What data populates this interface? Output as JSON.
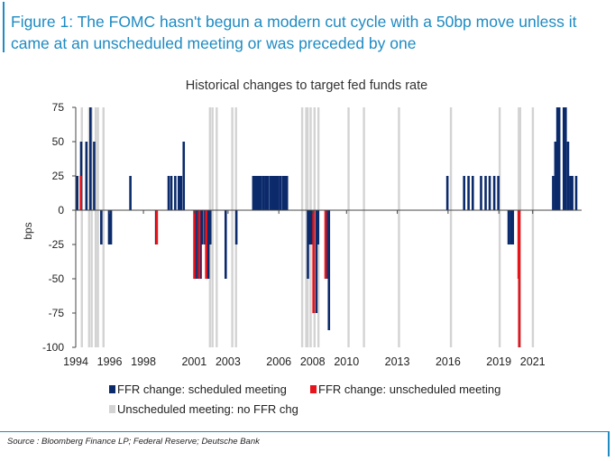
{
  "figure": {
    "title": "Figure 1: The FOMC hasn't begun a modern cut cycle with a 50bp move unless it came at an unscheduled meeting or was preceded by one",
    "source": "Source : Bloomberg Finance LP; Federal Reserve; Deutsche Bank"
  },
  "chart_data": {
    "type": "bar",
    "title": "Historical changes to target fed funds rate",
    "ylabel": "bps",
    "xlabel": "",
    "ylim": [
      -100,
      75
    ],
    "xlim": [
      1994.0,
      2023.2
    ],
    "yticks": [
      75,
      50,
      25,
      0,
      -25,
      -50,
      -75,
      -100
    ],
    "xticks": [
      "1994",
      "1996",
      "1998",
      "2001",
      "2003",
      "2006",
      "2008",
      "2010",
      "2013",
      "2016",
      "2019",
      "2021"
    ],
    "legend_placement": "bottom",
    "colors": {
      "scheduled": "#0b2a6b",
      "unscheduled": "#e8141b",
      "unscheduled_no_change": "#d3d3d3"
    },
    "series": [
      {
        "name": "FFR change: scheduled meeting",
        "points": [
          {
            "x": 1994.09,
            "y": 25
          },
          {
            "x": 1994.32,
            "y": 50
          },
          {
            "x": 1994.63,
            "y": 50
          },
          {
            "x": 1994.87,
            "y": 75
          },
          {
            "x": 1995.09,
            "y": 50
          },
          {
            "x": 1995.51,
            "y": -25
          },
          {
            "x": 1995.97,
            "y": -25
          },
          {
            "x": 1996.08,
            "y": -25
          },
          {
            "x": 1997.23,
            "y": 25
          },
          {
            "x": 1998.75,
            "y": -25
          },
          {
            "x": 1999.49,
            "y": 25
          },
          {
            "x": 1999.65,
            "y": 25
          },
          {
            "x": 1999.88,
            "y": 25
          },
          {
            "x": 2000.09,
            "y": 25
          },
          {
            "x": 2000.22,
            "y": 25
          },
          {
            "x": 2000.38,
            "y": 50
          },
          {
            "x": 2001.08,
            "y": -50
          },
          {
            "x": 2001.22,
            "y": -50
          },
          {
            "x": 2001.38,
            "y": -50
          },
          {
            "x": 2001.48,
            "y": -25
          },
          {
            "x": 2001.64,
            "y": -25
          },
          {
            "x": 2001.84,
            "y": -50
          },
          {
            "x": 2001.95,
            "y": -25
          },
          {
            "x": 2002.86,
            "y": -50
          },
          {
            "x": 2003.49,
            "y": -25
          },
          {
            "x": 2004.49,
            "y": 25
          },
          {
            "x": 2004.61,
            "y": 25
          },
          {
            "x": 2004.72,
            "y": 25
          },
          {
            "x": 2004.81,
            "y": 25
          },
          {
            "x": 2004.87,
            "y": 25
          },
          {
            "x": 2004.95,
            "y": 25
          },
          {
            "x": 2005.09,
            "y": 25
          },
          {
            "x": 2005.22,
            "y": 25
          },
          {
            "x": 2005.34,
            "y": 25
          },
          {
            "x": 2005.49,
            "y": 25
          },
          {
            "x": 2005.61,
            "y": 25
          },
          {
            "x": 2005.72,
            "y": 25
          },
          {
            "x": 2005.84,
            "y": 25
          },
          {
            "x": 2005.95,
            "y": 25
          },
          {
            "x": 2006.09,
            "y": 25
          },
          {
            "x": 2006.24,
            "y": 25
          },
          {
            "x": 2006.36,
            "y": 25
          },
          {
            "x": 2006.48,
            "y": 25
          },
          {
            "x": 2007.72,
            "y": -50
          },
          {
            "x": 2007.83,
            "y": -25
          },
          {
            "x": 2007.95,
            "y": -25
          },
          {
            "x": 2008.22,
            "y": -75
          },
          {
            "x": 2008.32,
            "y": -25
          },
          {
            "x": 2008.82,
            "y": -50
          },
          {
            "x": 2008.96,
            "y": -87.5
          },
          {
            "x": 2015.96,
            "y": 25
          },
          {
            "x": 2016.95,
            "y": 25
          },
          {
            "x": 2017.21,
            "y": 25
          },
          {
            "x": 2017.46,
            "y": 25
          },
          {
            "x": 2017.95,
            "y": 25
          },
          {
            "x": 2018.22,
            "y": 25
          },
          {
            "x": 2018.46,
            "y": 25
          },
          {
            "x": 2018.73,
            "y": 25
          },
          {
            "x": 2018.97,
            "y": 25
          },
          {
            "x": 2019.58,
            "y": -25
          },
          {
            "x": 2019.71,
            "y": -25
          },
          {
            "x": 2019.83,
            "y": -25
          },
          {
            "x": 2022.21,
            "y": 25
          },
          {
            "x": 2022.34,
            "y": 50
          },
          {
            "x": 2022.46,
            "y": 75
          },
          {
            "x": 2022.57,
            "y": 75
          },
          {
            "x": 2022.84,
            "y": 75
          },
          {
            "x": 2022.95,
            "y": 75
          },
          {
            "x": 2023.09,
            "y": 50
          },
          {
            "x": 2023.22,
            "y": 25
          },
          {
            "x": 2023.34,
            "y": 25
          },
          {
            "x": 2023.57,
            "y": 25
          }
        ]
      },
      {
        "name": "FFR change: unscheduled meeting",
        "points": [
          {
            "x": 1994.3,
            "y": 25
          },
          {
            "x": 1998.79,
            "y": -25
          },
          {
            "x": 2001.01,
            "y": -50
          },
          {
            "x": 2001.3,
            "y": -50
          },
          {
            "x": 2001.71,
            "y": -50
          },
          {
            "x": 2008.05,
            "y": -75
          },
          {
            "x": 2008.76,
            "y": -50
          },
          {
            "x": 2020.17,
            "y": -50
          },
          {
            "x": 2020.21,
            "y": -100
          }
        ]
      },
      {
        "name": "Unscheduled meeting: no FFR chg",
        "points": [
          {
            "x": 1994.36
          },
          {
            "x": 1994.79
          },
          {
            "x": 1994.94
          },
          {
            "x": 1995.18
          },
          {
            "x": 1995.31
          },
          {
            "x": 1995.64
          },
          {
            "x": 2001.93
          },
          {
            "x": 2002.08
          },
          {
            "x": 2002.33
          },
          {
            "x": 2003.25
          },
          {
            "x": 2003.47
          },
          {
            "x": 2007.38
          },
          {
            "x": 2007.62
          },
          {
            "x": 2007.7
          },
          {
            "x": 2007.88
          },
          {
            "x": 2008.11
          },
          {
            "x": 2008.34
          },
          {
            "x": 2010.12
          },
          {
            "x": 2011.03
          },
          {
            "x": 2013.1
          },
          {
            "x": 2016.17
          },
          {
            "x": 2019.05
          },
          {
            "x": 2020.18
          },
          {
            "x": 2020.26
          },
          {
            "x": 2021.01
          }
        ]
      }
    ]
  }
}
